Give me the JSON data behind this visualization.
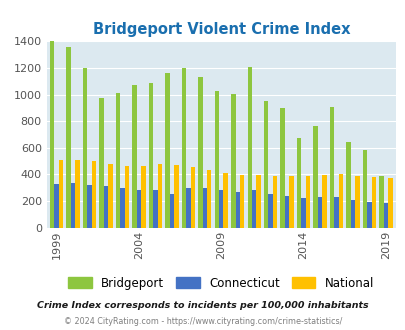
{
  "title": "Bridgeport Violent Crime Index",
  "title_color": "#1a6faf",
  "years": [
    1999,
    2000,
    2001,
    2002,
    2003,
    2004,
    2005,
    2006,
    2007,
    2008,
    2009,
    2010,
    2011,
    2012,
    2013,
    2014,
    2015,
    2016,
    2017,
    2018,
    2019,
    2020
  ],
  "bridgeport": [
    1400,
    1360,
    1200,
    975,
    1010,
    1070,
    1090,
    1160,
    1200,
    1130,
    1025,
    1005,
    1205,
    950,
    900,
    670,
    760,
    905,
    640,
    580,
    390,
    0
  ],
  "connecticut": [
    330,
    335,
    320,
    315,
    295,
    280,
    285,
    255,
    300,
    300,
    285,
    270,
    285,
    255,
    240,
    225,
    230,
    230,
    210,
    190,
    185,
    0
  ],
  "national": [
    510,
    510,
    500,
    475,
    460,
    465,
    480,
    470,
    455,
    435,
    410,
    395,
    395,
    385,
    385,
    385,
    395,
    400,
    385,
    380,
    375,
    0
  ],
  "xtick_years": [
    1999,
    2004,
    2009,
    2014,
    2019
  ],
  "bar_color_bridgeport": "#8dc63f",
  "bar_color_connecticut": "#4472c4",
  "bar_color_national": "#ffc000",
  "background_color": "#dce9f0",
  "ylim": [
    0,
    1400
  ],
  "yticks": [
    0,
    200,
    400,
    600,
    800,
    1000,
    1200,
    1400
  ],
  "subtitle": "Crime Index corresponds to incidents per 100,000 inhabitants",
  "footer": "© 2024 CityRating.com - https://www.cityrating.com/crime-statistics/",
  "footer_color": "#7f7f7f",
  "subtitle_color": "#1a1a1a",
  "legend_labels": [
    "Bridgeport",
    "Connecticut",
    "National"
  ]
}
